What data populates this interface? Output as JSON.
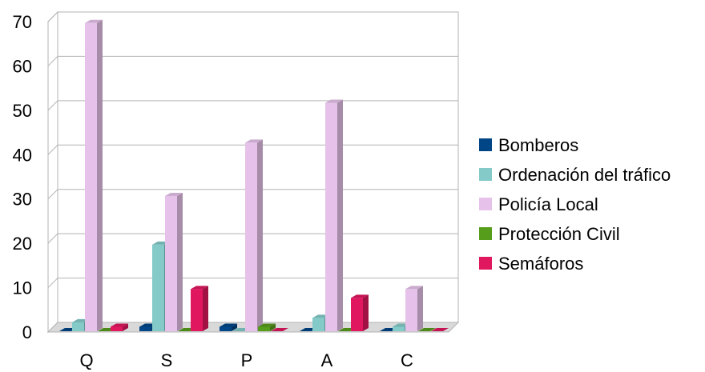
{
  "chart_data": {
    "type": "bar",
    "categories": [
      "Q",
      "S",
      "P",
      "A",
      "C"
    ],
    "series": [
      {
        "name": "Bomberos",
        "color": "#004586",
        "values": [
          0,
          1,
          1,
          0,
          0
        ]
      },
      {
        "name": "Ordenación del tráfico",
        "color": "#83cac8",
        "values": [
          2,
          19.5,
          0,
          3,
          1
        ]
      },
      {
        "name": "Policía Local",
        "color": "#e6c2ea",
        "values": [
          69.5,
          30.5,
          42.5,
          51.5,
          9.5
        ]
      },
      {
        "name": "Protección Civil",
        "color": "#579d1c",
        "values": [
          0,
          0,
          1,
          0,
          0
        ]
      },
      {
        "name": "Semáforos",
        "color": "#e0175f",
        "values": [
          1,
          9.5,
          0,
          7.5,
          0
        ]
      }
    ],
    "ylim": [
      0,
      70
    ],
    "yticks": [
      0,
      10,
      20,
      30,
      40,
      50,
      60,
      70
    ],
    "grid": true,
    "legend_position": "right",
    "style": "3d-column"
  }
}
